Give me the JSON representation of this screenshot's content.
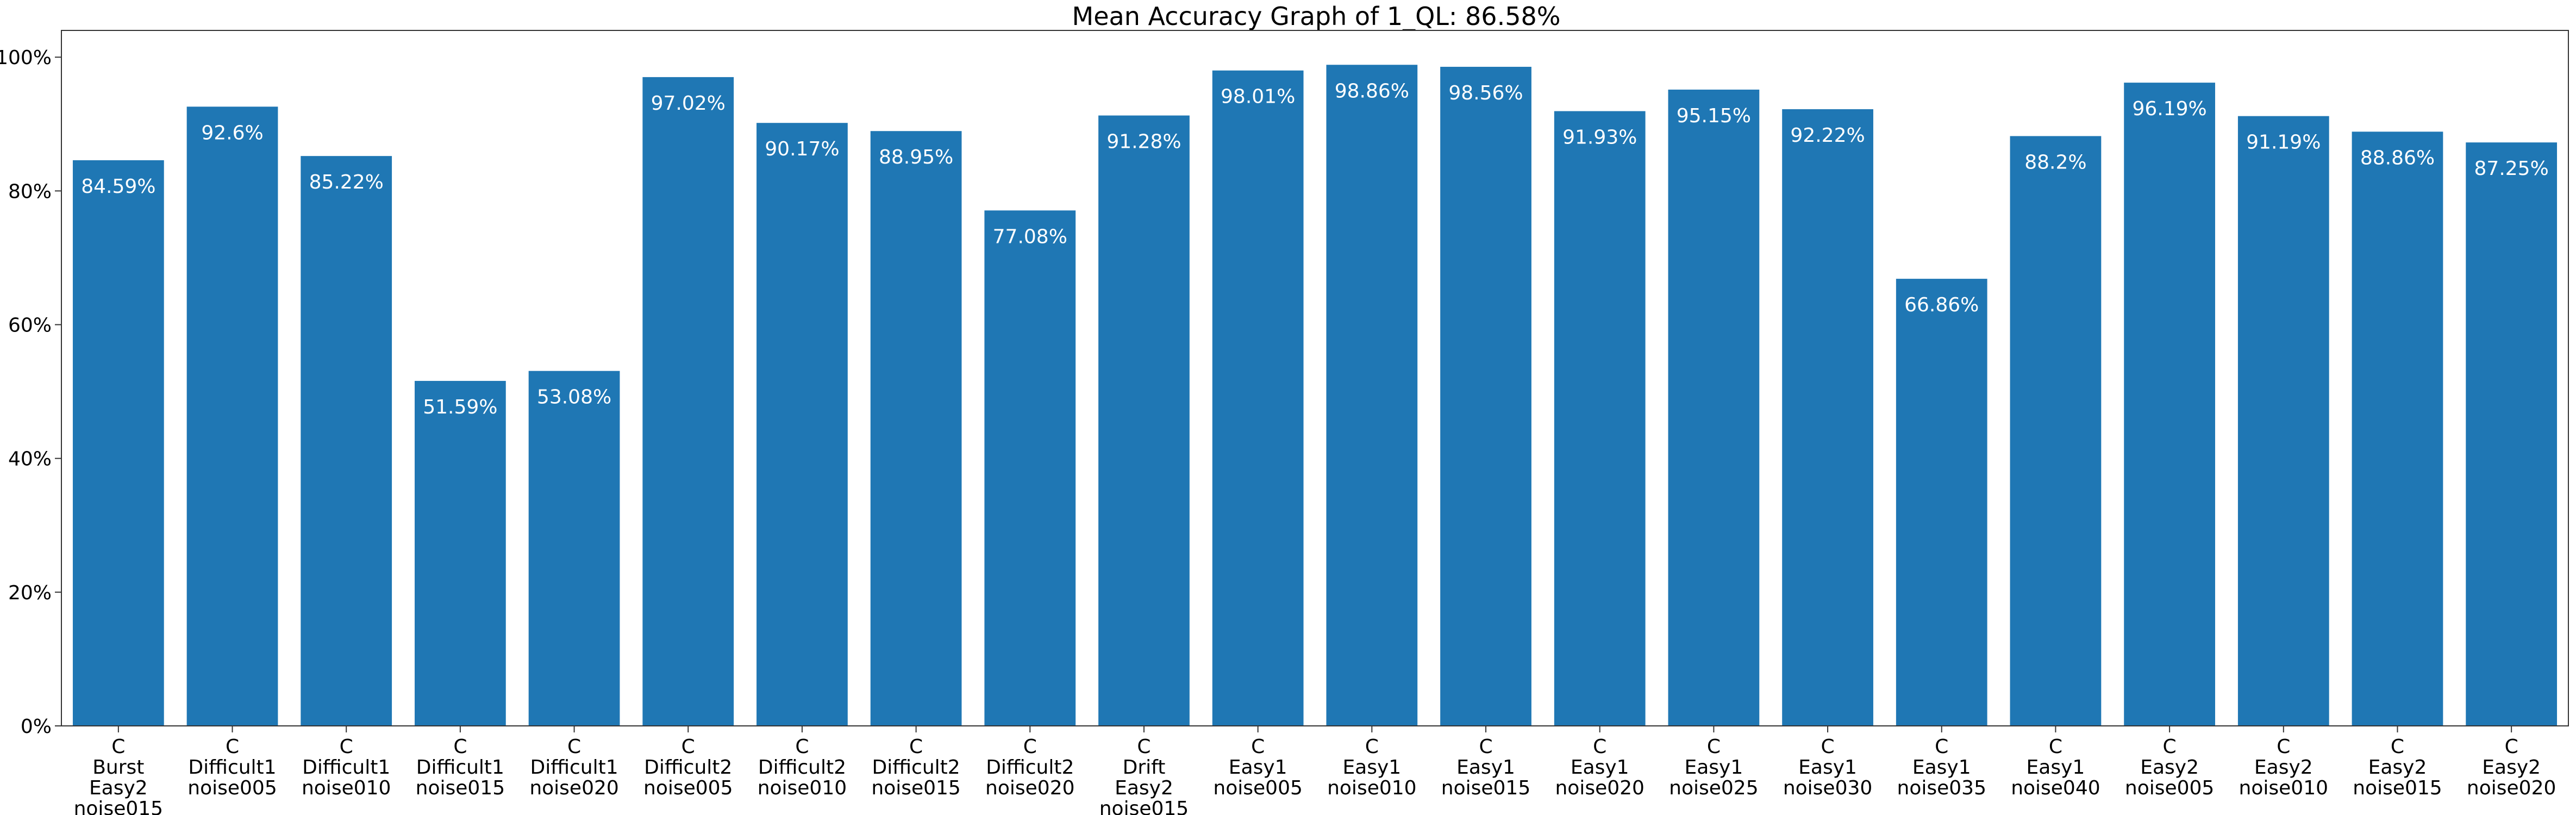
{
  "chart_data": {
    "type": "bar",
    "title": "Mean Accuracy Graph of 1_QL: 86.58%",
    "xlabel": "",
    "ylabel": "",
    "ylim": [
      0,
      104
    ],
    "y_ticks": [
      0,
      20,
      40,
      60,
      80,
      100
    ],
    "y_tick_labels": [
      "0%",
      "20%",
      "40%",
      "60%",
      "80%",
      "100%"
    ],
    "grid": false,
    "bar_color": "#1f77b4",
    "label_color": "#ffffff",
    "categories": [
      [
        "C",
        "Burst",
        "Easy2",
        "noise015"
      ],
      [
        "C",
        "Difficult1",
        "noise005"
      ],
      [
        "C",
        "Difficult1",
        "noise010"
      ],
      [
        "C",
        "Difficult1",
        "noise015"
      ],
      [
        "C",
        "Difficult1",
        "noise020"
      ],
      [
        "C",
        "Difficult2",
        "noise005"
      ],
      [
        "C",
        "Difficult2",
        "noise010"
      ],
      [
        "C",
        "Difficult2",
        "noise015"
      ],
      [
        "C",
        "Difficult2",
        "noise020"
      ],
      [
        "C",
        "Drift",
        "Easy2",
        "noise015"
      ],
      [
        "C",
        "Easy1",
        "noise005"
      ],
      [
        "C",
        "Easy1",
        "noise010"
      ],
      [
        "C",
        "Easy1",
        "noise015"
      ],
      [
        "C",
        "Easy1",
        "noise020"
      ],
      [
        "C",
        "Easy1",
        "noise025"
      ],
      [
        "C",
        "Easy1",
        "noise030"
      ],
      [
        "C",
        "Easy1",
        "noise035"
      ],
      [
        "C",
        "Easy1",
        "noise040"
      ],
      [
        "C",
        "Easy2",
        "noise005"
      ],
      [
        "C",
        "Easy2",
        "noise010"
      ],
      [
        "C",
        "Easy2",
        "noise015"
      ],
      [
        "C",
        "Easy2",
        "noise020"
      ]
    ],
    "values": [
      84.59,
      92.6,
      85.22,
      51.59,
      53.08,
      97.02,
      90.17,
      88.95,
      77.08,
      91.28,
      98.01,
      98.86,
      98.56,
      91.93,
      95.15,
      92.22,
      66.86,
      88.2,
      96.19,
      91.19,
      88.86,
      87.25
    ],
    "value_labels": [
      "84.59%",
      "92.6%",
      "85.22%",
      "51.59%",
      "53.08%",
      "97.02%",
      "90.17%",
      "88.95%",
      "77.08%",
      "91.28%",
      "98.01%",
      "98.86%",
      "98.56%",
      "91.93%",
      "95.15%",
      "92.22%",
      "66.86%",
      "88.2%",
      "96.19%",
      "91.19%",
      "88.86%",
      "87.25%"
    ]
  }
}
